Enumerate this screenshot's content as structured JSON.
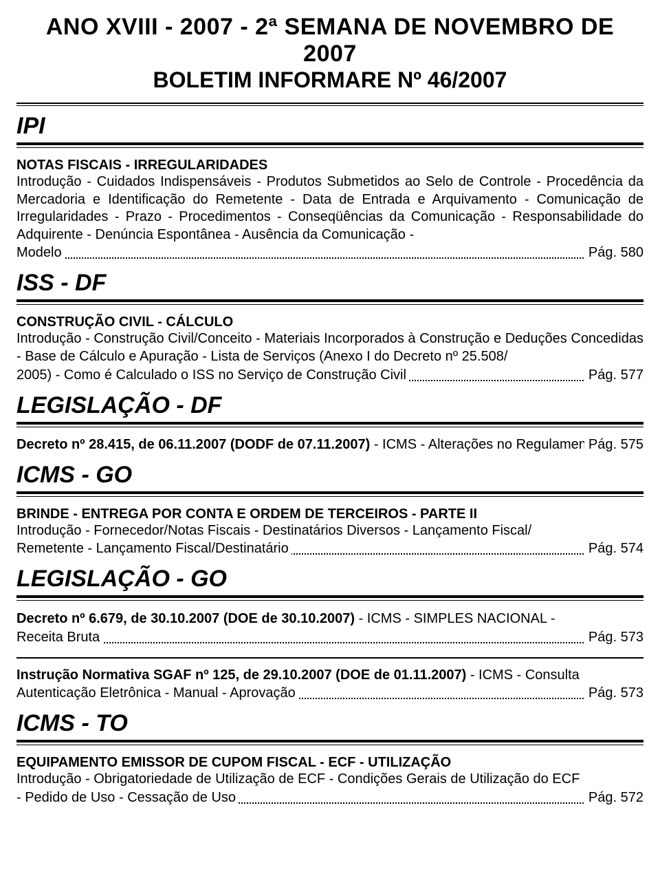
{
  "header": {
    "line1": "ANO XVIII - 2007 - 2ª SEMANA DE NOVEMBRO DE 2007",
    "line2": "BOLETIM INFORMARE Nº 46/2007"
  },
  "sections": [
    {
      "heading": "IPI",
      "entries": [
        {
          "title": "NOTAS FISCAIS - IRREGULARIDADES",
          "body": "Introdução - Cuidados Indispensáveis - Produtos Submetidos ao Selo de Controle - Procedência da Mercadoria e Identificação do Remetente - Data de Entrada e Arquivamento - Comunicação de Irregularidades - Prazo - Procedimentos - Conseqüências da Comunicação - Responsabilidade do Adquirente - Denúncia Espontânea - Ausência da Comunicação -",
          "leader_prefix": "Modelo",
          "page": "Pág. 580"
        }
      ]
    },
    {
      "heading": "ISS - DF",
      "entries": [
        {
          "title": "CONSTRUÇÃO CIVIL - CÁLCULO",
          "body": "Introdução - Construção Civil/Conceito - Materiais Incorporados à Construção e Deduções Concedidas - Base de Cálculo e Apuração - Lista de Serviços (Anexo I do Decreto nº 25.508/",
          "leader_prefix": "2005) - Como é Calculado o ISS no Serviço de Construção Civil",
          "page": "Pág. 577"
        }
      ]
    },
    {
      "heading": "LEGISLAÇÃO - DF",
      "entries": [
        {
          "title": "",
          "body": "",
          "leader_prefix_bold": "Decreto nº 28.415, de 06.11.2007 (DODF de 07.11.2007)",
          "leader_prefix_rest": " - ICMS - Alterações no Regulamento",
          "page": "Pág. 575"
        }
      ]
    },
    {
      "heading": "ICMS - GO",
      "entries": [
        {
          "title": "BRINDE - ENTREGA POR CONTA E ORDEM DE TERCEIROS - PARTE II",
          "body": "Introdução - Fornecedor/Notas Fiscais - Destinatários Diversos - Lançamento Fiscal/",
          "leader_prefix": "Remetente - Lançamento Fiscal/Destinatário",
          "page": "Pág. 574"
        }
      ]
    },
    {
      "heading": "LEGISLAÇÃO - GO",
      "entries": [
        {
          "title": "",
          "body": "",
          "leader_prefix_bold": "Decreto nº 6.679, de 30.10.2007 (DOE de 30.10.2007)",
          "leader_prefix_rest": " - ICMS - SIMPLES NACIONAL -",
          "second_line_prefix": "Receita Bruta",
          "page": "Pág. 573"
        },
        {
          "separator": true,
          "title": "",
          "body": "",
          "leader_prefix_bold": "Instrução Normativa SGAF nº 125, de 29.10.2007 (DOE de 01.11.2007)",
          "leader_prefix_rest": " - ICMS - Consulta",
          "second_line_prefix": "Autenticação Eletrônica - Manual - Aprovação",
          "page": "Pág. 573"
        }
      ]
    },
    {
      "heading": "ICMS - TO",
      "entries": [
        {
          "title": "EQUIPAMENTO EMISSOR DE CUPOM FISCAL - ECF - UTILIZAÇÃO",
          "body": "Introdução - Obrigatoriedade de Utilização de ECF - Condições Gerais de Utilização do ECF",
          "leader_prefix": "- Pedido de Uso - Cessação de Uso",
          "page": "Pág. 572"
        }
      ]
    }
  ]
}
